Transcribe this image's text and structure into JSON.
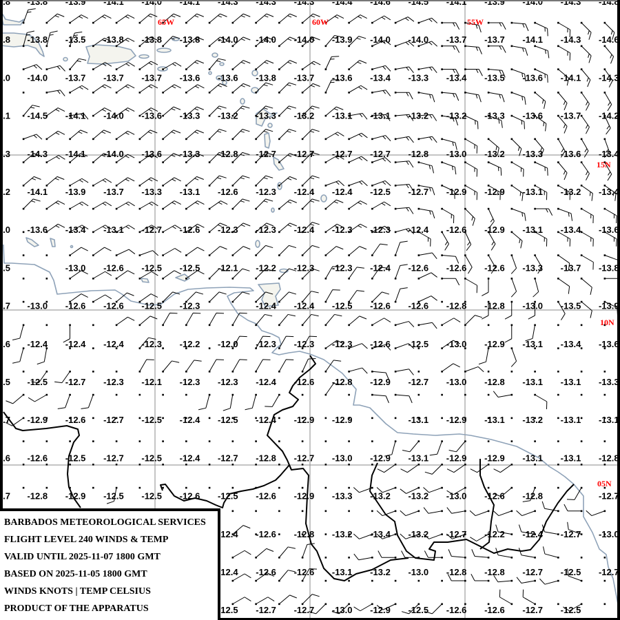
{
  "title_block": {
    "lines": [
      "BARBADOS METEOROLOGICAL SERVICES",
      "FLIGHT LEVEL 240 WINDS & TEMP",
      "VALID UNTIL 2025-11-07 1800 GMT",
      "BASED ON 2025-11-05 1800 GMT",
      "WINDS KNOTS | TEMP CELSIUS",
      "PRODUCT OF THE APPARATUS"
    ]
  },
  "longitude_labels": [
    "65W",
    "60W",
    "55W"
  ],
  "latitude_labels": [
    "15N",
    "10N",
    "05N"
  ],
  "colors": {
    "geo_label": "#ff0000",
    "coastline": "#8ea2b8",
    "border": "#000000",
    "grid": "#8a8a8a"
  },
  "temps": {
    "rows": [
      [
        ".8",
        "-13.8",
        "-13.9",
        "-14.1",
        "-14.0",
        "-14.1",
        "-14.3",
        "-14.3",
        "-14.3",
        "-14.4",
        "-14.6",
        "-14.5",
        "-14.1",
        "-13.9",
        "-14.0",
        "-14.3",
        "-14.8"
      ],
      [
        ".8",
        "-13.8",
        "-13.5",
        "-13.8",
        "-13.8",
        "-13.8",
        "-14.0",
        "-14.0",
        "-14.0",
        "-13.9",
        "-14.0",
        "-14.0",
        "-13.7",
        "-13.7",
        "-14.1",
        "-14.3",
        "-14.6"
      ],
      [
        ".0",
        "-14.0",
        "-13.7",
        "-13.7",
        "-13.7",
        "-13.6",
        "-13.6",
        "-13.8",
        "-13.7",
        "-13.6",
        "-13.4",
        "-13.3",
        "-13.4",
        "-13.5",
        "-13.6",
        "-14.1",
        "-14.3"
      ],
      [
        ".1",
        "-14.5",
        "-14.1",
        "-14.0",
        "-13.6",
        "-13.3",
        "-13.2",
        "-13.3",
        "-13.2",
        "-13.1",
        "-13.1",
        "-13.2",
        "-13.2",
        "-13.3",
        "-13.6",
        "-13.7",
        "-14.2"
      ],
      [
        ".3",
        "-14.3",
        "-14.1",
        "-14.0",
        "-13.6",
        "-13.3",
        "-12.8",
        "-12.7",
        "-12.7",
        "-12.7",
        "-12.7",
        "-12.8",
        "-13.0",
        "-13.2",
        "-13.3",
        "-13.6",
        "-13.4"
      ],
      [
        ".2",
        "-14.1",
        "-13.9",
        "-13.7",
        "-13.3",
        "-13.1",
        "-12.6",
        "-12.3",
        "-12.4",
        "-12.4",
        "-12.5",
        "-12.7",
        "-12.9",
        "-12.9",
        "-13.1",
        "-13.2",
        "-13.4"
      ],
      [
        ".0",
        "-13.6",
        "-13.4",
        "-13.1",
        "-12.7",
        "-12.6",
        "-12.3",
        "-12.3",
        "-12.4",
        "-12.3",
        "-12.3",
        "-12.4",
        "-12.6",
        "-12.9",
        "-13.1",
        "-13.4",
        "-13.6"
      ],
      [
        ".5",
        null,
        "-13.0",
        "-12.6",
        "-12.5",
        "-12.5",
        "-12.1",
        "-12.2",
        "-12.3",
        "-12.3",
        "-12.4",
        "-12.6",
        "-12.6",
        "-12.6",
        "-13.3",
        "-13.7",
        "-13.8"
      ],
      [
        ".7",
        "-13.0",
        "-12.6",
        "-12.6",
        "-12.5",
        "-12.3",
        null,
        "-12.4",
        "-12.4",
        "-12.5",
        "-12.6",
        "-12.6",
        "-12.8",
        "-12.8",
        "-13.0",
        "-13.5",
        "-13.9"
      ],
      [
        ".6",
        "-12.4",
        "-12.4",
        "-12.4",
        "-12.3",
        "-12.2",
        "-12.0",
        "-12.3",
        "-12.3",
        "-12.3",
        "-12.6",
        "-12.5",
        "-13.0",
        "-12.9",
        "-13.1",
        "-13.4",
        "-13.6"
      ],
      [
        ".5",
        "-12.5",
        "-12.7",
        "-12.3",
        "-12.1",
        "-12.3",
        "-12.3",
        "-12.4",
        "-12.6",
        "-12.8",
        "-12.9",
        "-12.7",
        "-13.0",
        "-12.8",
        "-13.1",
        "-13.1",
        "-13.3"
      ],
      [
        ".7",
        "-12.9",
        "-12.6",
        "-12.7",
        "-12.5",
        "-12.4",
        "-12.5",
        "-12.4",
        "-12.9",
        "-12.9",
        null,
        "-13.1",
        "-12.9",
        "-13.1",
        "-13.2",
        "-13.1",
        "-13.1"
      ],
      [
        ".6",
        "-12.6",
        "-12.5",
        "-12.7",
        "-12.5",
        "-12.4",
        "-12.7",
        "-12.8",
        "-12.7",
        "-13.0",
        "-12.9",
        "-13.1",
        "-12.9",
        "-12.9",
        "-13.1",
        "-13.1",
        "-12.8"
      ],
      [
        ".7",
        "-12.8",
        "-12.9",
        "-12.5",
        "-12.5",
        "-12.6",
        "-12.5",
        "-12.6",
        "-12.9",
        "-13.3",
        "-13.2",
        "-13.2",
        "-13.0",
        "-12.6",
        "-12.8",
        null,
        "-12.7"
      ],
      [
        null,
        null,
        null,
        null,
        null,
        null,
        "-12.4",
        "-12.6",
        "-12.8",
        "-13.2",
        "-13.4",
        "-13.2",
        "-12.7",
        "-12.2",
        "-12.4",
        "-12.7",
        "-13.0"
      ],
      [
        null,
        null,
        null,
        null,
        null,
        null,
        "-12.4",
        "-12.6",
        "-12.6",
        "-13.1",
        "-13.2",
        "-13.0",
        "-12.8",
        "-12.8",
        "-12.7",
        "-12.5",
        "-12.7"
      ],
      [
        null,
        null,
        null,
        null,
        null,
        null,
        "-12.5",
        "-12.7",
        "-12.7",
        "-13.0",
        "-12.9",
        "-12.5",
        "-12.6",
        "-12.6",
        "-12.7",
        "-12.5",
        null
      ]
    ]
  },
  "winds": {
    "direction_deg": [
      [
        20,
        50,
        55,
        55,
        55,
        50,
        50,
        50,
        50,
        50,
        50,
        50,
        50,
        55,
        55,
        60,
        65,
        70,
        90,
        100,
        90,
        95,
        115,
        120,
        135,
        135
      ],
      [
        15,
        15,
        20,
        55,
        55,
        50,
        45,
        50,
        50,
        50,
        50,
        50,
        50,
        40,
        45,
        65,
        70,
        70,
        90,
        95,
        90,
        100,
        110,
        120,
        135,
        140
      ],
      [
        70,
        75,
        40,
        60,
        60,
        55,
        60,
        50,
        40,
        50,
        50,
        50,
        55,
        25,
        50,
        75,
        80,
        80,
        90,
        90,
        95,
        110,
        115,
        130,
        140,
        145
      ],
      [
        null,
        80,
        60,
        55,
        55,
        55,
        55,
        55,
        50,
        50,
        45,
        45,
        50,
        25,
        60,
        80,
        90,
        100,
        95,
        100,
        100,
        110,
        130,
        140,
        145,
        150
      ],
      [
        40,
        55,
        80,
        55,
        55,
        55,
        50,
        50,
        45,
        45,
        45,
        45,
        45,
        50,
        80,
        85,
        85,
        85,
        100,
        115,
        110,
        115,
        125,
        140,
        145,
        155
      ],
      [
        70,
        55,
        50,
        50,
        55,
        50,
        50,
        50,
        45,
        45,
        45,
        45,
        45,
        60,
        65,
        75,
        80,
        80,
        105,
        120,
        130,
        135,
        140,
        150,
        150,
        160
      ],
      [
        50,
        60,
        50,
        50,
        55,
        55,
        50,
        50,
        45,
        45,
        45,
        50,
        45,
        60,
        65,
        70,
        85,
        105,
        110,
        120,
        115,
        120,
        115,
        140,
        145,
        150
      ],
      [
        50,
        50,
        60,
        60,
        55,
        55,
        55,
        50,
        45,
        45,
        45,
        50,
        45,
        70,
        70,
        70,
        85,
        100,
        115,
        120,
        120,
        125,
        120,
        120,
        125,
        125
      ],
      [
        45,
        55,
        60,
        60,
        60,
        60,
        55,
        55,
        55,
        45,
        45,
        50,
        45,
        50,
        55,
        60,
        85,
        100,
        120,
        135,
        155,
        110,
        90,
        110,
        120,
        120
      ],
      [
        null,
        55,
        60,
        60,
        60,
        60,
        60,
        55,
        50,
        50,
        50,
        50,
        45,
        55,
        55,
        65,
        75,
        120,
        150,
        155,
        150,
        130,
        120,
        120,
        120,
        120
      ],
      [
        null,
        null,
        55,
        55,
        65,
        70,
        60,
        55,
        50,
        50,
        45,
        45,
        45,
        50,
        50,
        35,
        20,
        80,
        95,
        150,
        150,
        160,
        150,
        125,
        120,
        110
      ],
      [
        null,
        null,
        55,
        60,
        55,
        60,
        55,
        55,
        45,
        45,
        45,
        45,
        45,
        30,
        35,
        35,
        20,
        65,
        90,
        120,
        180,
        160,
        165,
        125,
        130,
        90
      ],
      [
        null,
        null,
        55,
        60,
        50,
        55,
        45,
        45,
        45,
        45,
        45,
        45,
        40,
        30,
        35,
        45,
        20,
        65,
        null,
        null,
        180,
        180,
        180,
        150,
        130,
        115
      ],
      [
        195,
        null,
        180,
        null,
        55,
        50,
        30,
        30,
        30,
        30,
        40,
        40,
        40,
        40,
        50,
        60,
        75,
        80,
        60,
        45,
        null,
        180,
        190,
        null,
        null,
        null
      ],
      [
        195,
        190,
        null,
        null,
        null,
        40,
        null,
        null,
        null,
        30,
        30,
        30,
        30,
        55,
        70,
        75,
        70,
        null,
        55,
        null,
        190,
        160,
        null,
        null,
        null,
        null
      ],
      [
        null,
        215,
        215,
        null,
        null,
        30,
        40,
        35,
        30,
        30,
        30,
        30,
        25,
        35,
        75,
        95,
        80,
        null,
        55,
        70,
        null,
        null,
        null,
        null,
        null,
        null
      ],
      [
        230,
        240,
        200,
        200,
        null,
        null,
        null,
        null,
        195,
        190,
        195,
        210,
        null,
        35,
        null,
        95,
        95,
        null,
        null,
        null,
        null,
        260,
        120,
        null,
        null,
        null
      ],
      [
        235,
        null,
        null,
        null,
        null,
        null,
        null,
        null,
        null,
        null,
        null,
        null,
        null,
        null,
        null,
        null,
        null,
        null,
        null,
        null,
        null,
        null,
        null,
        null,
        null,
        null
      ],
      [
        null,
        null,
        null,
        null,
        null,
        null,
        null,
        null,
        null,
        null,
        null,
        null,
        null,
        null,
        null,
        null,
        195,
        220,
        200,
        220,
        null,
        null,
        null,
        null,
        null,
        null
      ],
      [
        null,
        null,
        null,
        null,
        null,
        null,
        null,
        null,
        null,
        null,
        null,
        null,
        null,
        null,
        null,
        null,
        235,
        235,
        225,
        235,
        235,
        235,
        null,
        null,
        null,
        null
      ],
      [
        null,
        null,
        null,
        null,
        190,
        null,
        null,
        null,
        null,
        null,
        null,
        null,
        null,
        null,
        null,
        250,
        250,
        245,
        250,
        240,
        null,
        230,
        200,
        null,
        210,
        null
      ],
      [
        null,
        null,
        null,
        null,
        null,
        null,
        null,
        null,
        null,
        null,
        null,
        null,
        null,
        null,
        null,
        null,
        250,
        250,
        260,
        260,
        250,
        250,
        250,
        280,
        270,
        250
      ],
      [
        null,
        null,
        null,
        null,
        null,
        null,
        null,
        null,
        null,
        50,
        null,
        null,
        null,
        null,
        null,
        250,
        250,
        250,
        250,
        250,
        240,
        280,
        280,
        280,
        290,
        null
      ],
      [
        null,
        null,
        null,
        null,
        null,
        null,
        null,
        null,
        null,
        60,
        50,
        40,
        20,
        null,
        null,
        260,
        270,
        270,
        270,
        275,
        275,
        280,
        280,
        285,
        null,
        null
      ],
      [
        null,
        null,
        null,
        null,
        null,
        null,
        null,
        null,
        null,
        60,
        55,
        40,
        30,
        null,
        null,
        null,
        null,
        null,
        null,
        270,
        270,
        265,
        260,
        255,
        290,
        null
      ],
      [
        null,
        null,
        null,
        null,
        null,
        null,
        null,
        null,
        null,
        60,
        60,
        50,
        45,
        225,
        225,
        240,
        245,
        225,
        225,
        null,
        null,
        300,
        300,
        null,
        240,
        null
      ]
    ],
    "speed_kt_by_row": [
      15,
      15,
      15,
      15,
      15,
      15,
      15,
      15,
      15,
      15,
      10,
      10,
      10,
      10,
      10,
      10,
      10,
      10,
      10,
      10,
      10,
      10,
      10,
      10,
      10,
      10
    ]
  }
}
